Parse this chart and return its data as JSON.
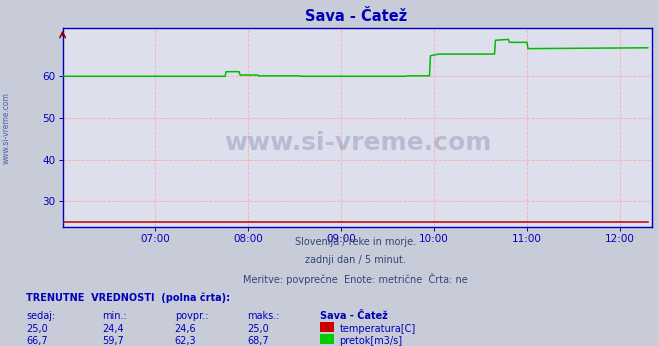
{
  "title": "Sava - Čatež",
  "title_color": "#0000bb",
  "fig_bg_color": "#c8ccd8",
  "plot_bg_color": "#dde0ec",
  "grid_color": "#ffaaaa",
  "axis_color": "#0000bb",
  "tick_color": "#0000bb",
  "xlim_hours": [
    6.0,
    12.35
  ],
  "ylim": [
    24.0,
    71.5
  ],
  "yticks": [
    30,
    40,
    50,
    60
  ],
  "xtick_labels": [
    "07:00",
    "08:00",
    "09:00",
    "10:00",
    "11:00",
    "12:00"
  ],
  "xtick_hours": [
    7.0,
    8.0,
    9.0,
    10.0,
    11.0,
    12.0
  ],
  "subtitle_lines": [
    "Slovenija / reke in morje.",
    "zadnji dan / 5 minut.",
    "Meritve: povprečne  Enote: metrične  Črta: ne"
  ],
  "watermark_text": "www.si-vreme.com",
  "watermark_color": "#0a2060",
  "watermark_alpha": 0.18,
  "sidebar_text": "www.si-vreme.com",
  "sidebar_color": "#4466aa",
  "green_line_color": "#00bb00",
  "red_line_color": "#bb0000",
  "green_x": [
    6.0,
    7.75,
    7.76,
    7.9,
    7.91,
    8.1,
    8.11,
    8.55,
    8.56,
    9.7,
    9.71,
    9.95,
    9.96,
    10.05,
    10.06,
    10.65,
    10.66,
    10.8,
    10.81,
    11.0,
    11.01,
    12.3
  ],
  "green_y": [
    59.9,
    59.9,
    61.0,
    61.0,
    60.2,
    60.2,
    60.0,
    60.0,
    59.9,
    59.9,
    60.0,
    60.0,
    64.8,
    65.2,
    65.2,
    65.2,
    68.5,
    68.7,
    68.0,
    68.0,
    66.5,
    66.7
  ],
  "red_x": [
    6.0,
    9.8,
    9.81,
    10.35,
    10.36,
    10.55,
    10.56,
    12.3
  ],
  "red_y": [
    25.0,
    25.0,
    25.0,
    25.0,
    25.0,
    25.0,
    25.0,
    25.0
  ],
  "bottom_label": "TRENUTNE  VREDNOSTI  (polna črta):",
  "text_color": "#0000bb",
  "table_headers": [
    "sedaj:",
    "min.:",
    "povpr.:",
    "maks.:",
    "Sava - Čatež"
  ],
  "row1": [
    "25,0",
    "24,4",
    "24,6",
    "25,0",
    "temperatura[C]"
  ],
  "row2": [
    "66,7",
    "59,7",
    "62,3",
    "68,7",
    "pretok[m3/s]"
  ],
  "row1_color": "#cc0000",
  "row2_color": "#00cc00",
  "font_family": "DejaVu Sans"
}
